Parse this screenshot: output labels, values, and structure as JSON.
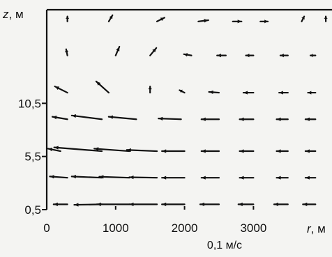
{
  "chart_data": {
    "type": "quiver",
    "title": "",
    "axes": {
      "x": {
        "var": "r",
        "unit": ", м",
        "ticks": [
          0,
          1000,
          2000,
          3000
        ],
        "tick_labels": [
          "0",
          "1000",
          "2000",
          "3000"
        ],
        "range": [
          0,
          4140
        ]
      },
      "y": {
        "var": "z",
        "unit": ", м",
        "ticks": [
          0.5,
          5.5,
          10.5
        ],
        "tick_labels": [
          "0,5",
          "5,5",
          "10,5"
        ],
        "range": [
          0.5,
          19.3
        ]
      }
    },
    "scale_label": "0,1 м/с",
    "grid": false,
    "vectors": [
      {
        "z": 1.0,
        "r": [
          300,
          800,
          1200,
          1600,
          2000,
          2500,
          3000,
          3500,
          3900
        ],
        "u": [
          -0.55,
          -1.1,
          -1.3,
          -1.1,
          -0.9,
          -0.75,
          -0.6,
          -0.55,
          -0.5
        ],
        "w": [
          0.0,
          -0.02,
          0.0,
          0.0,
          0.0,
          0.0,
          0.0,
          0.0,
          0.0
        ]
      },
      {
        "z": 3.5,
        "r": [
          300,
          800,
          1200,
          1600,
          2000,
          2500,
          3000,
          3500,
          3900
        ],
        "u": [
          -0.7,
          -1.2,
          -1.2,
          -1.1,
          -0.9,
          -0.7,
          -0.55,
          -0.45,
          -0.4
        ],
        "w": [
          0.05,
          0.05,
          0.04,
          0.02,
          0.0,
          0.0,
          0.0,
          0.0,
          0.0
        ]
      },
      {
        "z": 6.0,
        "r": [
          200,
          800,
          1200,
          1600,
          2000,
          2500,
          3000,
          3500,
          3900
        ],
        "u": [
          -0.5,
          -1.9,
          -1.4,
          -1.2,
          -0.9,
          -0.7,
          -0.55,
          -0.45,
          -0.4
        ],
        "w": [
          0.1,
          0.15,
          0.1,
          0.05,
          0.0,
          0.0,
          0.0,
          0.0,
          0.0
        ]
      },
      {
        "z": 9.0,
        "r": [
          300,
          800,
          1300,
          1950,
          2500,
          3000,
          3500,
          3900
        ],
        "u": [
          -0.6,
          -1.2,
          -1.1,
          -0.9,
          -0.7,
          -0.55,
          -0.45,
          -0.4
        ],
        "w": [
          0.1,
          0.15,
          0.1,
          0.03,
          0.0,
          0.0,
          0.0,
          0.0
        ]
      },
      {
        "z": 11.5,
        "r": [
          300,
          900,
          1500,
          2000,
          2500,
          3000,
          3500,
          3900
        ],
        "u": [
          -0.5,
          -0.5,
          0.0,
          -0.2,
          -0.4,
          -0.4,
          -0.35,
          -0.3
        ],
        "w": [
          0.25,
          0.45,
          0.25,
          0.1,
          0.03,
          0.0,
          0.0,
          0.0
        ]
      },
      {
        "z": 15.0,
        "r": [
          300,
          1000,
          1500,
          2100,
          2600,
          3000,
          3500,
          3900
        ],
        "u": [
          -0.05,
          0.15,
          0.25,
          -0.3,
          -0.35,
          -0.3,
          -0.3,
          -0.2
        ],
        "w": [
          0.25,
          0.35,
          0.3,
          0.05,
          0.0,
          0.0,
          0.0,
          0.0
        ]
      },
      {
        "z": 18.2,
        "r": [
          300,
          900,
          1600,
          2200,
          2700,
          3100,
          3700,
          4050
        ],
        "u": [
          0.0,
          0.15,
          0.3,
          0.4,
          0.35,
          0.3,
          0.1,
          0.0
        ],
        "w": [
          0.2,
          0.25,
          0.15,
          0.05,
          0.0,
          0.0,
          0.2,
          0.2
        ]
      }
    ]
  }
}
